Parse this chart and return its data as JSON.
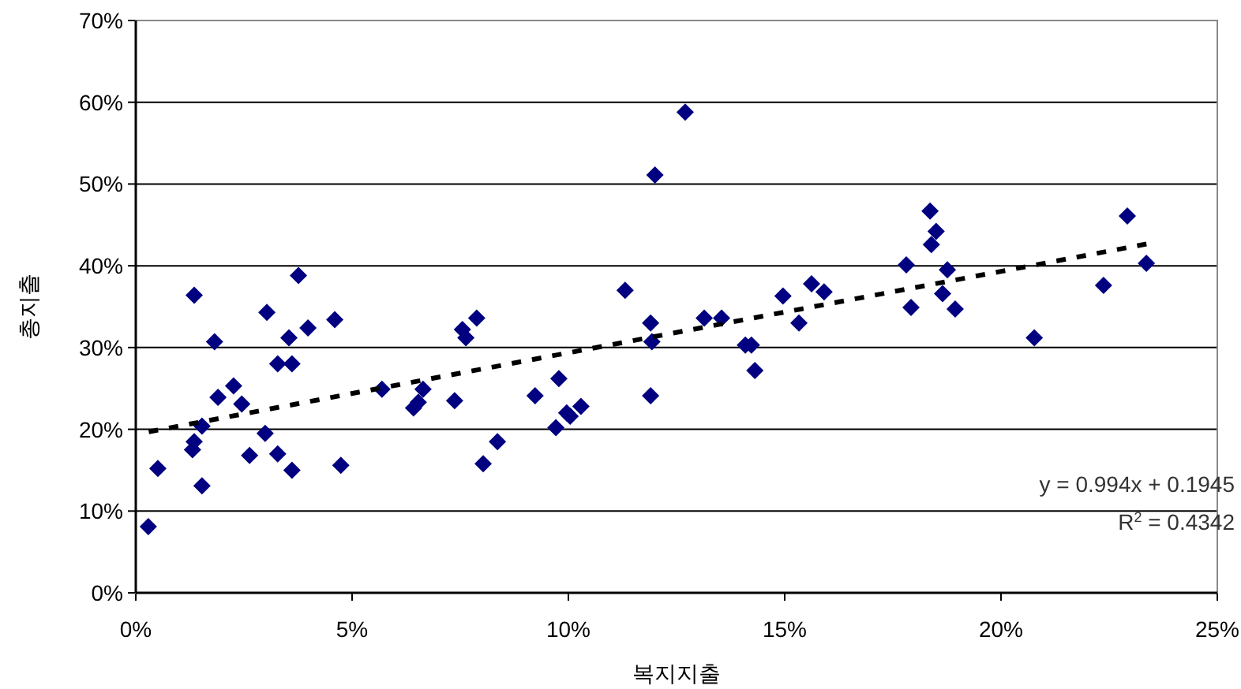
{
  "chart_data": {
    "type": "scatter",
    "xlabel": "복지지출",
    "ylabel": "총지출",
    "xlim": [
      0,
      25
    ],
    "ylim": [
      0,
      70
    ],
    "xticks": [
      {
        "value": 0,
        "label": "0%"
      },
      {
        "value": 5,
        "label": "5%"
      },
      {
        "value": 10,
        "label": "10%"
      },
      {
        "value": 15,
        "label": "15%"
      },
      {
        "value": 20,
        "label": "20%"
      },
      {
        "value": 25,
        "label": "25%"
      }
    ],
    "yticks": [
      {
        "value": 0,
        "label": "0%"
      },
      {
        "value": 10,
        "label": "10%"
      },
      {
        "value": 20,
        "label": "20%"
      },
      {
        "value": 30,
        "label": "30%"
      },
      {
        "value": 40,
        "label": "40%"
      },
      {
        "value": 50,
        "label": "50%"
      },
      {
        "value": 60,
        "label": "60%"
      },
      {
        "value": 70,
        "label": "70%"
      }
    ],
    "grid": "y",
    "legend": false,
    "series": [
      {
        "type": "scatter",
        "marker": "diamond",
        "color": "#000080",
        "x": [
          0.29,
          0.51,
          1.35,
          1.35,
          1.31,
          1.53,
          1.53,
          1.82,
          1.9,
          2.26,
          2.45,
          2.63,
          2.99,
          3.03,
          3.28,
          3.28,
          3.54,
          3.61,
          3.61,
          3.76,
          3.98,
          4.6,
          4.74,
          5.69,
          6.42,
          6.53,
          6.64,
          7.37,
          7.55,
          7.63,
          7.88,
          8.03,
          8.36,
          9.23,
          9.71,
          9.78,
          9.96,
          10.04,
          10.29,
          11.31,
          11.9,
          12.0,
          11.93,
          11.9,
          12.7,
          13.14,
          13.54,
          14.09,
          14.23,
          14.31,
          14.96,
          15.33,
          15.62,
          15.91,
          17.81,
          17.92,
          18.36,
          18.39,
          18.5,
          18.65,
          18.76,
          18.94,
          20.77,
          22.37,
          22.92,
          23.36
        ],
        "values": [
          8.1,
          15.2,
          36.4,
          18.5,
          17.5,
          20.4,
          13.1,
          30.7,
          23.9,
          25.3,
          23.1,
          16.8,
          19.5,
          34.3,
          28.0,
          17.0,
          31.2,
          28.0,
          15.0,
          38.8,
          32.4,
          33.4,
          15.6,
          24.9,
          22.6,
          23.3,
          24.9,
          23.5,
          32.2,
          31.2,
          33.6,
          15.8,
          18.5,
          24.1,
          20.2,
          26.2,
          22.0,
          21.6,
          22.8,
          37.0,
          33.0,
          51.1,
          30.7,
          24.1,
          58.8,
          33.6,
          33.6,
          30.3,
          30.3,
          27.2,
          36.3,
          33.0,
          37.8,
          36.8,
          40.1,
          34.9,
          46.7,
          42.6,
          44.2,
          36.6,
          39.5,
          34.7,
          31.2,
          37.6,
          46.1,
          40.3
        ]
      },
      {
        "type": "line",
        "line_style": "dashed",
        "color": "#000000",
        "x": [
          0.3,
          23.4
        ],
        "values": [
          19.7,
          42.7
        ]
      }
    ],
    "annotations": [
      "y = 0.994x + 0.1945",
      "R$^{2}$ = 0.4342"
    ]
  }
}
